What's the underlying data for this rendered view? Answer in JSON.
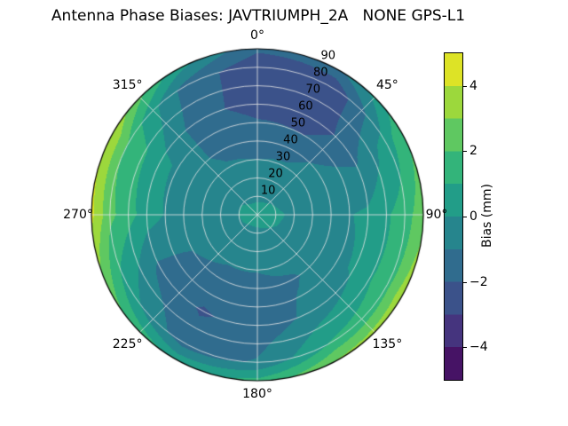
{
  "chart_data": {
    "type": "heatmap",
    "subtype": "polar_filled_contour",
    "title": "Antenna Phase Biases: JAVTRIUMPH_2A   NONE GPS-L1",
    "angular_axis": {
      "zero_location": "top",
      "direction": "clockwise",
      "tick_labels": [
        {
          "label": "0°",
          "angle_deg": 0
        },
        {
          "label": "45°",
          "angle_deg": 45
        },
        {
          "label": "90°",
          "angle_deg": 90
        },
        {
          "label": "135°",
          "angle_deg": 135
        },
        {
          "label": "180°",
          "angle_deg": 180
        },
        {
          "label": "225°",
          "angle_deg": 225
        },
        {
          "label": "270°",
          "angle_deg": 270
        },
        {
          "label": "315°",
          "angle_deg": 315
        }
      ]
    },
    "radial_axis": {
      "tick_labels": [
        "10",
        "20",
        "30",
        "40",
        "50",
        "60",
        "70",
        "80",
        "90"
      ],
      "tick_values": [
        10,
        20,
        30,
        40,
        50,
        60,
        70,
        80,
        90
      ],
      "max": 90,
      "label_angle_deg": 24
    },
    "colorbar": {
      "label": "Bias (mm)",
      "colormap": "viridis",
      "range": [
        -5,
        5
      ],
      "level_step": 1,
      "tick_labels": [
        "4",
        "2",
        "0",
        "−2",
        "−4"
      ],
      "tick_values": [
        4,
        2,
        0,
        -2,
        -4
      ]
    },
    "grid": {
      "azimuths_deg": [
        0,
        30,
        60,
        90,
        120,
        150,
        180,
        210,
        240,
        270,
        300,
        330,
        360
      ],
      "radii": [
        0,
        20,
        40,
        60,
        80,
        90
      ],
      "values_mm": [
        [
          0.3,
          -0.6,
          -1.4,
          -2.4,
          -2.7,
          -1.8
        ],
        [
          0.3,
          -0.5,
          -1.3,
          -2.7,
          -2.9,
          -1.2
        ],
        [
          0.3,
          -0.3,
          -0.7,
          -1.2,
          0.4,
          1.8
        ],
        [
          0.3,
          -0.1,
          -0.3,
          0.2,
          1.5,
          2.7
        ],
        [
          0.3,
          -0.2,
          -0.5,
          0.1,
          1.7,
          3.7
        ],
        [
          0.3,
          -0.4,
          -1.1,
          -0.7,
          1.1,
          3.1
        ],
        [
          0.3,
          -0.6,
          -1.3,
          -1.7,
          -0.9,
          1.3
        ],
        [
          0.3,
          -0.6,
          -1.3,
          -2.1,
          -1.5,
          0.7
        ],
        [
          0.3,
          -0.4,
          -1.0,
          -1.3,
          0.5,
          2.3
        ],
        [
          0.3,
          -0.3,
          -0.6,
          0.5,
          2.3,
          4.3
        ],
        [
          0.3,
          -0.3,
          -0.6,
          0.3,
          1.9,
          3.9
        ],
        [
          0.3,
          -0.6,
          -1.2,
          -1.7,
          -1.3,
          0.5
        ],
        [
          0.3,
          -0.6,
          -1.4,
          -2.4,
          -2.7,
          -1.8
        ]
      ]
    },
    "style": {
      "grid_color": "#e6e6e6",
      "outline_color": "#000000",
      "background": "#ffffff"
    }
  }
}
